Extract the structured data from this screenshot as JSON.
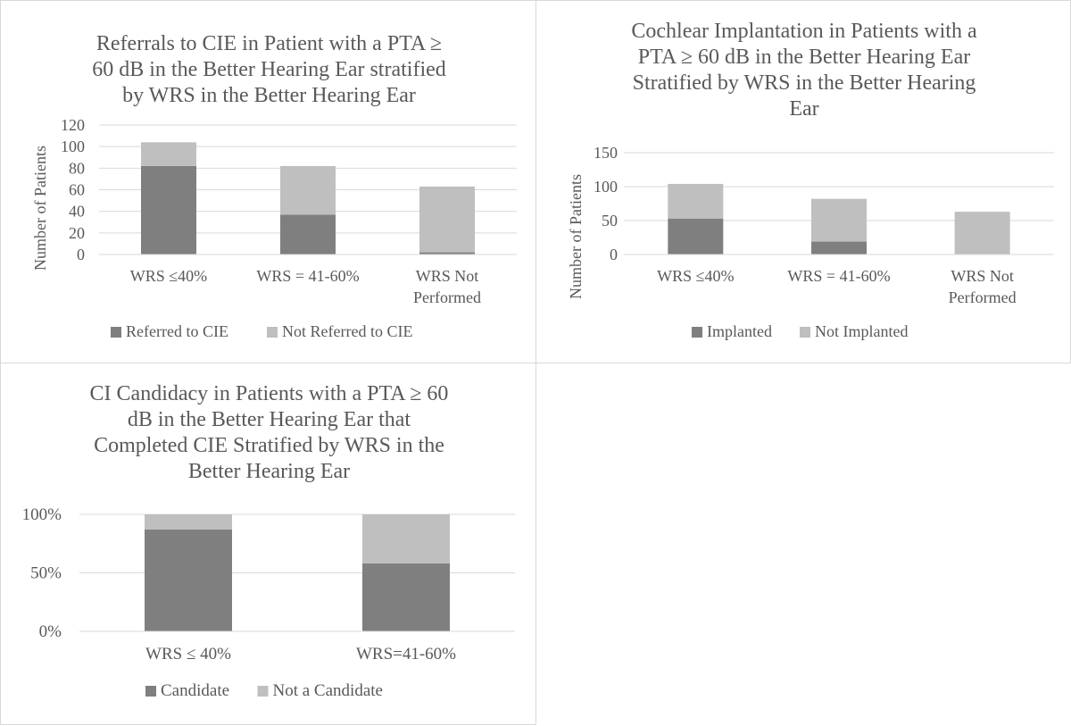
{
  "chart_data": [
    {
      "type": "bar",
      "stacked": true,
      "title": "Referrals to CIE in Patient with a PTA ≥ 60 dB in the Better Hearing Ear stratified by WRS in the Better  Hearing Ear",
      "categories": [
        "WRS ≤40%",
        "WRS = 41-60%",
        "WRS Not Performed"
      ],
      "series": [
        {
          "name": "Referred to CIE",
          "color": "#7f7f7f",
          "values": [
            82,
            37,
            2
          ]
        },
        {
          "name": "Not Referred to CIE",
          "color": "#bfbfbf",
          "values": [
            22,
            45,
            61
          ]
        }
      ],
      "xlabel": "",
      "ylabel": "Number of Patients",
      "ylim": [
        0,
        120
      ],
      "yticks": [
        0,
        20,
        40,
        60,
        80,
        100,
        120
      ],
      "ytick_labels": [
        "0",
        "20",
        "40",
        "60",
        "80",
        "100",
        "120"
      ],
      "grid": true,
      "legend": "bottom"
    },
    {
      "type": "bar",
      "stacked": true,
      "title": "Cochlear Implantation in Patients with a PTA ≥ 60 dB in the Better Hearing Ear Stratified by WRS in the Better  Hearing Ear",
      "categories": [
        "WRS ≤40%",
        "WRS = 41-60%",
        "WRS Not Performed"
      ],
      "series": [
        {
          "name": "Implanted",
          "color": "#7f7f7f",
          "values": [
            53,
            19,
            0
          ]
        },
        {
          "name": "Not Implanted",
          "color": "#bfbfbf",
          "values": [
            51,
            63,
            63
          ]
        }
      ],
      "xlabel": "",
      "ylabel": "Number of Patients",
      "ylim": [
        0,
        150
      ],
      "yticks": [
        0,
        50,
        100,
        150
      ],
      "ytick_labels": [
        "0",
        "50",
        "100",
        "150"
      ],
      "grid": true,
      "legend": "bottom"
    },
    {
      "type": "bar",
      "stacked": true,
      "percent": true,
      "title": "CI Candidacy in Patients with a PTA ≥ 60 dB in the Better Hearing Ear that Completed CIE Stratified by WRS in the Better Hearing Ear",
      "categories": [
        "WRS ≤ 40%",
        "WRS=41-60%"
      ],
      "series": [
        {
          "name": "Candidate",
          "color": "#7f7f7f",
          "values": [
            87,
            58
          ]
        },
        {
          "name": "Not a Candidate",
          "color": "#bfbfbf",
          "values": [
            13,
            42
          ]
        }
      ],
      "xlabel": "",
      "ylabel": "",
      "ylim": [
        0,
        100
      ],
      "yticks": [
        0,
        50,
        100
      ],
      "ytick_labels": [
        "0%",
        "50%",
        "100%"
      ],
      "grid": true,
      "legend": "bottom"
    }
  ],
  "titles_display": [
    [
      "Referrals to CIE in Patient with a PTA ≥",
      "60 dB in the Better Hearing Ear stratified",
      "by WRS in the Better  Hearing Ear"
    ],
    [
      "Cochlear Implantation in Patients with a",
      "PTA ≥ 60 dB in the Better Hearing Ear",
      "Stratified by WRS in the Better  Hearing",
      "Ear"
    ],
    [
      "CI Candidacy in Patients with a PTA ≥ 60",
      "dB in the Better Hearing Ear that",
      "Completed CIE Stratified by WRS in the",
      "Better Hearing Ear"
    ]
  ],
  "category_display": [
    [
      [
        "WRS ≤40%"
      ],
      [
        "WRS = 41-60%"
      ],
      [
        "WRS Not",
        "Performed"
      ]
    ],
    [
      [
        "WRS ≤40%"
      ],
      [
        "WRS = 41-60%"
      ],
      [
        "WRS Not",
        "Performed"
      ]
    ],
    [
      [
        "WRS ≤ 40%"
      ],
      [
        "WRS=41-60%"
      ]
    ]
  ]
}
